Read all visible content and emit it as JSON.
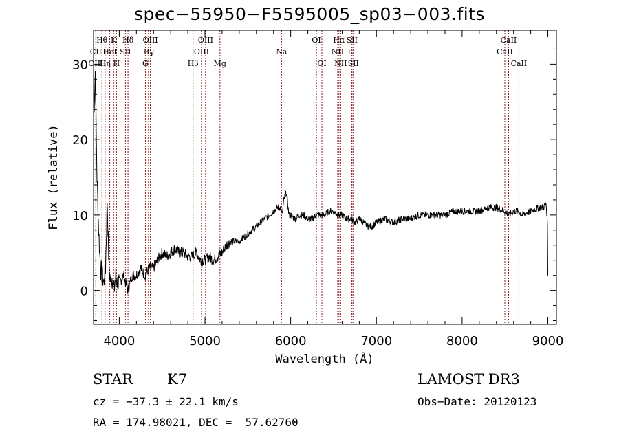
{
  "chart_data": {
    "type": "line",
    "title": "spec−55950−F5595005_sp03−003.fits",
    "xlabel": "Wavelength (Å)",
    "ylabel": "Flux (relative)",
    "xlim": [
      3700,
      9100
    ],
    "ylim": [
      -4.5,
      34.5
    ],
    "xticks": [
      4000,
      5000,
      6000,
      7000,
      8000,
      9000
    ],
    "yticks": [
      0,
      10,
      20,
      30
    ],
    "grid": false,
    "series": [
      {
        "name": "flux",
        "x": [
          3700,
          3720,
          3740,
          3760,
          3780,
          3800,
          3820,
          3840,
          3860,
          3880,
          3900,
          3920,
          3940,
          3960,
          3980,
          4000,
          4050,
          4100,
          4150,
          4200,
          4250,
          4300,
          4350,
          4400,
          4450,
          4500,
          4550,
          4600,
          4650,
          4700,
          4750,
          4800,
          4850,
          4900,
          4950,
          5000,
          5050,
          5100,
          5150,
          5200,
          5250,
          5300,
          5350,
          5400,
          5450,
          5500,
          5550,
          5600,
          5650,
          5700,
          5750,
          5800,
          5850,
          5880,
          5900,
          5920,
          5950,
          5980,
          6000,
          6050,
          6100,
          6150,
          6200,
          6250,
          6300,
          6350,
          6400,
          6450,
          6500,
          6550,
          6600,
          6650,
          6700,
          6750,
          6800,
          6850,
          6900,
          6950,
          7000,
          7100,
          7200,
          7300,
          7400,
          7500,
          7600,
          7700,
          7800,
          7900,
          8000,
          8100,
          8200,
          8300,
          8400,
          8500,
          8550,
          8600,
          8650,
          8700,
          8800,
          8900,
          8950,
          8980,
          8995,
          9000
        ],
        "values": [
          22,
          29,
          15,
          8,
          3,
          2,
          1,
          3,
          12,
          3,
          1,
          2,
          0,
          2,
          1,
          1,
          2,
          0,
          2,
          2,
          3,
          2,
          3,
          3,
          4,
          5,
          4.5,
          5,
          5.5,
          5,
          5,
          4.5,
          4.5,
          5,
          4,
          4,
          4.5,
          4,
          4.5,
          5,
          6,
          6.5,
          6.5,
          6.5,
          7,
          7.5,
          8,
          8.5,
          9,
          9.5,
          10,
          10.5,
          11,
          11,
          10,
          12,
          13,
          10,
          10,
          9.5,
          10,
          10,
          9.5,
          9.5,
          10,
          10,
          10,
          10.5,
          10.5,
          10,
          10,
          9.5,
          9.5,
          9,
          9.5,
          9,
          8.5,
          8.5,
          9,
          9.5,
          9,
          9.5,
          9.5,
          10,
          10,
          10,
          10,
          10.5,
          10.5,
          10.5,
          10.5,
          11,
          11,
          10.5,
          10,
          10.5,
          10.5,
          10,
          10.5,
          11,
          11,
          11.5,
          9,
          2
        ]
      }
    ],
    "lines": [
      {
        "label": "Hθ",
        "x": 3798,
        "row": 1
      },
      {
        "label": "CII",
        "x": 3727,
        "row": 2
      },
      {
        "label": "OIII",
        "x": 3727,
        "row": 3
      },
      {
        "label": "Hη",
        "x": 3835,
        "row": 3
      },
      {
        "label": "HeI",
        "x": 3889,
        "row": 2
      },
      {
        "label": "K",
        "x": 3934,
        "row": 1
      },
      {
        "label": "H",
        "x": 3968,
        "row": 3
      },
      {
        "label": "SII",
        "x": 4072,
        "row": 2
      },
      {
        "label": "Hδ",
        "x": 4102,
        "row": 1
      },
      {
        "label": "OIII",
        "x": 4363,
        "row": 1
      },
      {
        "label": "Hγ",
        "x": 4341,
        "row": 2
      },
      {
        "label": "G",
        "x": 4305,
        "row": 3
      },
      {
        "label": "Hβ",
        "x": 4861,
        "row": 3
      },
      {
        "label": "OIII",
        "x": 5007,
        "row": 1
      },
      {
        "label": "OIII",
        "x": 4959,
        "row": 2
      },
      {
        "label": "Mg",
        "x": 5175,
        "row": 3
      },
      {
        "label": "Na",
        "x": 5893,
        "row": 2
      },
      {
        "label": "OI",
        "x": 6300,
        "row": 1
      },
      {
        "label": "OI",
        "x": 6364,
        "row": 3
      },
      {
        "label": "Hα",
        "x": 6563,
        "row": 1
      },
      {
        "label": "SII",
        "x": 6716,
        "row": 1
      },
      {
        "label": "NII",
        "x": 6548,
        "row": 2
      },
      {
        "label": "Li",
        "x": 6708,
        "row": 2
      },
      {
        "label": "NII",
        "x": 6583,
        "row": 3
      },
      {
        "label": "SII",
        "x": 6731,
        "row": 3
      },
      {
        "label": "CaII",
        "x": 8542,
        "row": 1
      },
      {
        "label": "CaII",
        "x": 8498,
        "row": 2
      },
      {
        "label": "CaII",
        "x": 8662,
        "row": 3
      }
    ]
  },
  "info": {
    "class_label": "STAR",
    "subclass": "K7",
    "survey": "LAMOST DR3",
    "cz": "cz = −37.3 ± 22.1 km/s",
    "obs_date": "Obs−Date: 20120123",
    "coords": "RA = 174.98021, DEC =  57.62760"
  },
  "colors": {
    "line": "#000000",
    "marker": "#8b1a1a"
  }
}
